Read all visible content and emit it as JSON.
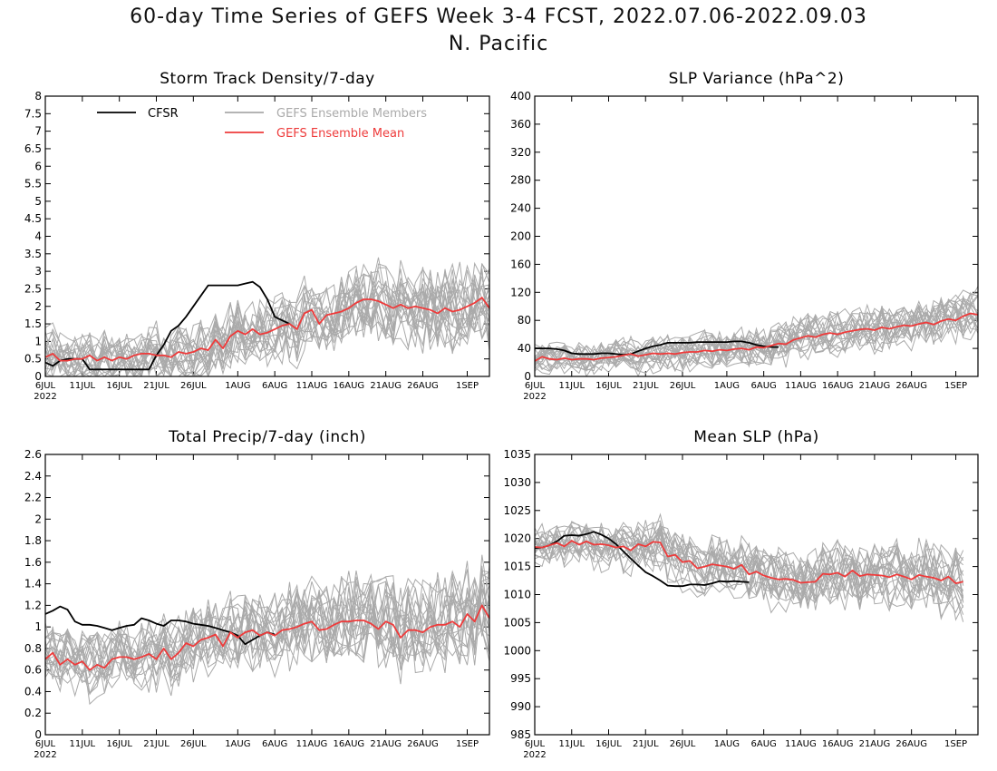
{
  "figure": {
    "title_line1": "60-day Time Series of GEFS Week 3-4 FCST, 2022.07.06-2022.09.03",
    "title_line2": "N. Pacific"
  },
  "legend": {
    "cfsr": "CFSR",
    "members": "GEFS Ensemble Members",
    "mean": "GEFS Ensemble Mean",
    "colors": {
      "cfsr": "#000000",
      "members": "#aaaaaa",
      "mean": "#ee3b3b"
    }
  },
  "x_axis": {
    "ticks": [
      "6JUL",
      "11JUL",
      "16JUL",
      "21JUL",
      "26JUL",
      "1AUG",
      "6AUG",
      "11AUG",
      "16AUG",
      "21AUG",
      "26AUG",
      "1SEP"
    ],
    "year_label": "2022",
    "day_count": 60
  },
  "chart_data": [
    {
      "type": "line",
      "title": "Storm Track Density/7-day",
      "ylim": [
        0,
        8
      ],
      "yticks": [
        "0",
        "0.5",
        "1",
        "1.5",
        "2",
        "2.5",
        "3",
        "3.5",
        "4",
        "4.5",
        "5",
        "5.5",
        "6",
        "6.5",
        "7",
        "7.5",
        "8"
      ],
      "series": [
        {
          "name": "CFSR",
          "values": [
            0.4,
            0.3,
            0.45,
            0.5,
            0.5,
            0.5,
            0.2,
            0.2,
            0.2,
            0.2,
            0.2,
            0.2,
            0.2,
            0.2,
            0.2,
            0.6,
            0.9,
            1.3,
            1.45,
            1.7,
            2.0,
            2.3,
            2.6,
            2.6,
            2.6,
            2.6,
            2.6,
            2.65,
            2.7,
            2.55,
            2.2,
            1.7,
            1.6,
            1.5
          ]
        },
        {
          "name": "GEFS Ensemble Mean",
          "values": [
            0.55,
            0.65,
            0.45,
            0.45,
            0.5,
            0.5,
            0.6,
            0.45,
            0.55,
            0.45,
            0.55,
            0.5,
            0.6,
            0.65,
            0.65,
            0.6,
            0.6,
            0.55,
            0.7,
            0.65,
            0.7,
            0.8,
            0.75,
            1.05,
            0.8,
            1.15,
            1.3,
            1.2,
            1.35,
            1.2,
            1.25,
            1.35,
            1.45,
            1.5,
            1.35,
            1.8,
            1.9,
            1.5,
            1.75,
            1.8,
            1.85,
            1.95,
            2.1,
            2.2,
            2.2,
            2.15,
            2.05,
            1.95,
            2.05,
            1.95,
            2.0,
            1.95,
            1.9,
            1.8,
            1.95,
            1.85,
            1.9,
            2.0,
            2.1,
            2.25,
            1.95
          ]
        }
      ]
    },
    {
      "type": "line",
      "title": "SLP Variance (hPa^2)",
      "ylim": [
        0,
        400
      ],
      "yticks": [
        "0",
        "40",
        "80",
        "120",
        "160",
        "200",
        "240",
        "280",
        "320",
        "360",
        "400"
      ],
      "series": [
        {
          "name": "CFSR",
          "values": [
            40,
            40,
            40,
            39,
            37,
            33,
            32,
            32,
            32,
            33,
            33,
            32,
            31,
            32,
            36,
            40,
            43,
            45,
            48,
            48,
            48,
            48,
            49,
            49,
            49,
            49,
            49,
            50,
            50,
            48,
            45,
            43,
            42,
            42
          ]
        },
        {
          "name": "GEFS Ensemble Mean",
          "values": [
            22,
            28,
            25,
            24,
            26,
            24,
            25,
            25,
            24,
            26,
            27,
            28,
            30,
            32,
            29,
            31,
            33,
            32,
            33,
            32,
            34,
            35,
            35,
            37,
            36,
            38,
            37,
            39,
            40,
            38,
            42,
            41,
            44,
            47,
            46,
            52,
            55,
            58,
            56,
            60,
            62,
            60,
            63,
            65,
            67,
            68,
            66,
            70,
            68,
            71,
            73,
            72,
            75,
            77,
            74,
            79,
            82,
            80,
            86,
            90,
            88
          ]
        }
      ]
    },
    {
      "type": "line",
      "title": "Total Precip/7-day (inch)",
      "ylim": [
        0,
        2.6
      ],
      "yticks": [
        "0",
        "0.2",
        "0.4",
        "0.6",
        "0.8",
        "1",
        "1.2",
        "1.4",
        "1.6",
        "1.8",
        "2",
        "2.2",
        "2.4",
        "2.6"
      ],
      "series": [
        {
          "name": "CFSR",
          "values": [
            1.12,
            1.15,
            1.19,
            1.16,
            1.05,
            1.02,
            1.02,
            1.01,
            0.99,
            0.97,
            0.99,
            1.01,
            1.02,
            1.08,
            1.06,
            1.03,
            1.01,
            1.06,
            1.06,
            1.05,
            1.03,
            1.02,
            1.01,
            0.99,
            0.97,
            0.95,
            0.92,
            0.84,
            0.88,
            0.92,
            0.95,
            0.93
          ]
        },
        {
          "name": "GEFS Ensemble Mean",
          "values": [
            0.7,
            0.76,
            0.65,
            0.7,
            0.65,
            0.68,
            0.6,
            0.65,
            0.62,
            0.7,
            0.72,
            0.72,
            0.7,
            0.72,
            0.75,
            0.7,
            0.8,
            0.7,
            0.76,
            0.85,
            0.82,
            0.88,
            0.9,
            0.93,
            0.82,
            0.95,
            0.9,
            0.95,
            0.97,
            0.92,
            0.95,
            0.92,
            0.97,
            0.98,
            1.0,
            1.03,
            1.05,
            0.97,
            0.98,
            1.02,
            1.05,
            1.05,
            1.06,
            1.06,
            1.03,
            0.98,
            1.05,
            1.02,
            0.9,
            0.97,
            0.97,
            0.95,
            1.0,
            1.02,
            1.02,
            1.05,
            1.0,
            1.12,
            1.05,
            1.2,
            1.08
          ]
        }
      ]
    },
    {
      "type": "line",
      "title": "Mean SLP (hPa)",
      "ylim": [
        985,
        1035
      ],
      "yticks": [
        "985",
        "990",
        "995",
        "1000",
        "1005",
        "1010",
        "1015",
        "1020",
        "1025",
        "1030",
        "1035"
      ],
      "series": [
        {
          "name": "CFSR",
          "values": [
            1018.3,
            1018.4,
            1018.8,
            1019.5,
            1020.5,
            1020.6,
            1020.5,
            1020.8,
            1021.2,
            1020.7,
            1020.0,
            1019.0,
            1017.7,
            1016.4,
            1015.2,
            1014.0,
            1013.3,
            1012.5,
            1011.6,
            1011.5,
            1011.5,
            1011.8,
            1011.8,
            1011.7,
            1012.0,
            1012.4,
            1012.3,
            1012.4,
            1012.3,
            1012.2
          ]
        },
        {
          "name": "GEFS Ensemble Mean",
          "values": [
            1018.5,
            1018.4,
            1018.8,
            1019.2,
            1018.6,
            1019.6,
            1018.9,
            1019.5,
            1018.9,
            1019.0,
            1018.8,
            1018.4,
            1018.6,
            1017.9,
            1019.0,
            1018.6,
            1019.4,
            1019.3,
            1016.8,
            1017.1,
            1015.8,
            1016.0,
            1014.7,
            1015.0,
            1015.4,
            1015.2,
            1015.0,
            1014.6,
            1015.3,
            1013.6,
            1014.1,
            1013.4,
            1013.0,
            1012.7,
            1012.8,
            1012.6,
            1012.1,
            1012.2,
            1012.3,
            1013.7,
            1013.6,
            1013.9,
            1013.2,
            1014.3,
            1013.3,
            1013.6,
            1013.5,
            1013.4,
            1013.1,
            1013.6,
            1013.2,
            1012.7,
            1013.5,
            1013.2,
            1013.0,
            1012.5,
            1013.2,
            1012.0,
            1012.3
          ]
        }
      ]
    }
  ]
}
